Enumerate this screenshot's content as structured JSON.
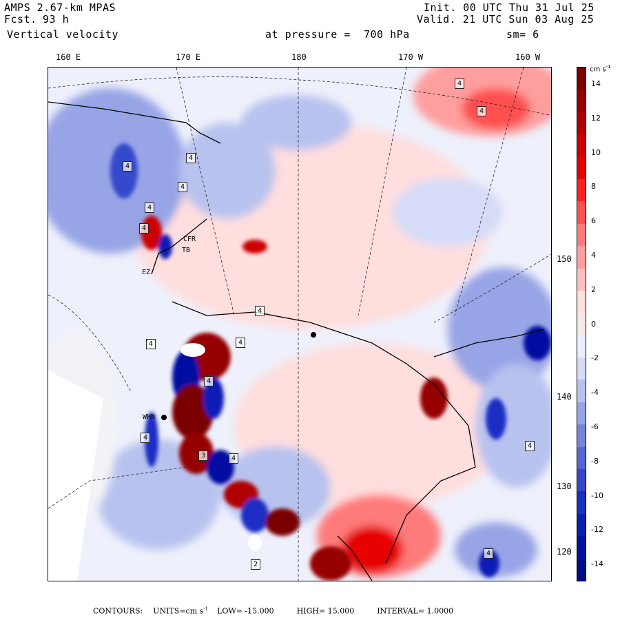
{
  "header": {
    "model": "AMPS 2.67-km MPAS",
    "forecast_label": "Fcst.",
    "forecast_value": "93 h",
    "field": "Vertical velocity",
    "init": "Init. 00 UTC Thu 31 Jul 25",
    "valid": "Valid. 21 UTC Sun 03 Aug 25",
    "level": "at pressure =  700 hPa",
    "smoothing": "sm= 6"
  },
  "top_longitude_labels": [
    "160 E",
    "170 E",
    "180",
    "170 W",
    "160 W"
  ],
  "right_longitude_labels": [
    "150 W",
    "140 W",
    "130 W",
    "120 W"
  ],
  "colorbar": {
    "units_html": "cm s",
    "units_exp": "-1",
    "labels": [
      "14",
      "12",
      "10",
      "8",
      "6",
      "4",
      "2",
      "0",
      "-2",
      "-4",
      "-6",
      "-8",
      "-10",
      "-12",
      "-14"
    ],
    "colors": [
      "#7a0000",
      "#960000",
      "#b00000",
      "#cc0000",
      "#e60000",
      "#ff2020",
      "#ff5050",
      "#ff7a7a",
      "#ff9e9e",
      "#ffc0c0",
      "#ffdede",
      "#f5eaea",
      "#eceefb",
      "#d6dcf7",
      "#b8c2ef",
      "#97a4e6",
      "#7585dc",
      "#5566d4",
      "#3548cc",
      "#1a2ec4",
      "#0a1cb6",
      "#0010a0",
      "#000c86"
    ]
  },
  "footer": {
    "contours_label": "CONTOURS:",
    "units": "UNITS=cm s",
    "units_exp": "-1",
    "low": "LOW= -15.000",
    "high": "HIGH= 15.000",
    "interval": "INTERVAL= 1.0000"
  },
  "stations": [
    {
      "id": "CFR",
      "label": "CFR"
    },
    {
      "id": "TB",
      "label": "TB"
    },
    {
      "id": "EZ",
      "label": "EZ"
    },
    {
      "id": "WHN",
      "label": "WHN"
    }
  ],
  "extrema_labels": [
    "4",
    "4",
    "4",
    "4",
    "4",
    "4",
    "4",
    "4",
    "4",
    "4",
    "4",
    "4",
    "4",
    "4",
    "2",
    "3",
    "4"
  ],
  "colors": {
    "strong_up": "#b00000",
    "strong_down": "#0010a0",
    "near_zero": "#eef0fb"
  }
}
